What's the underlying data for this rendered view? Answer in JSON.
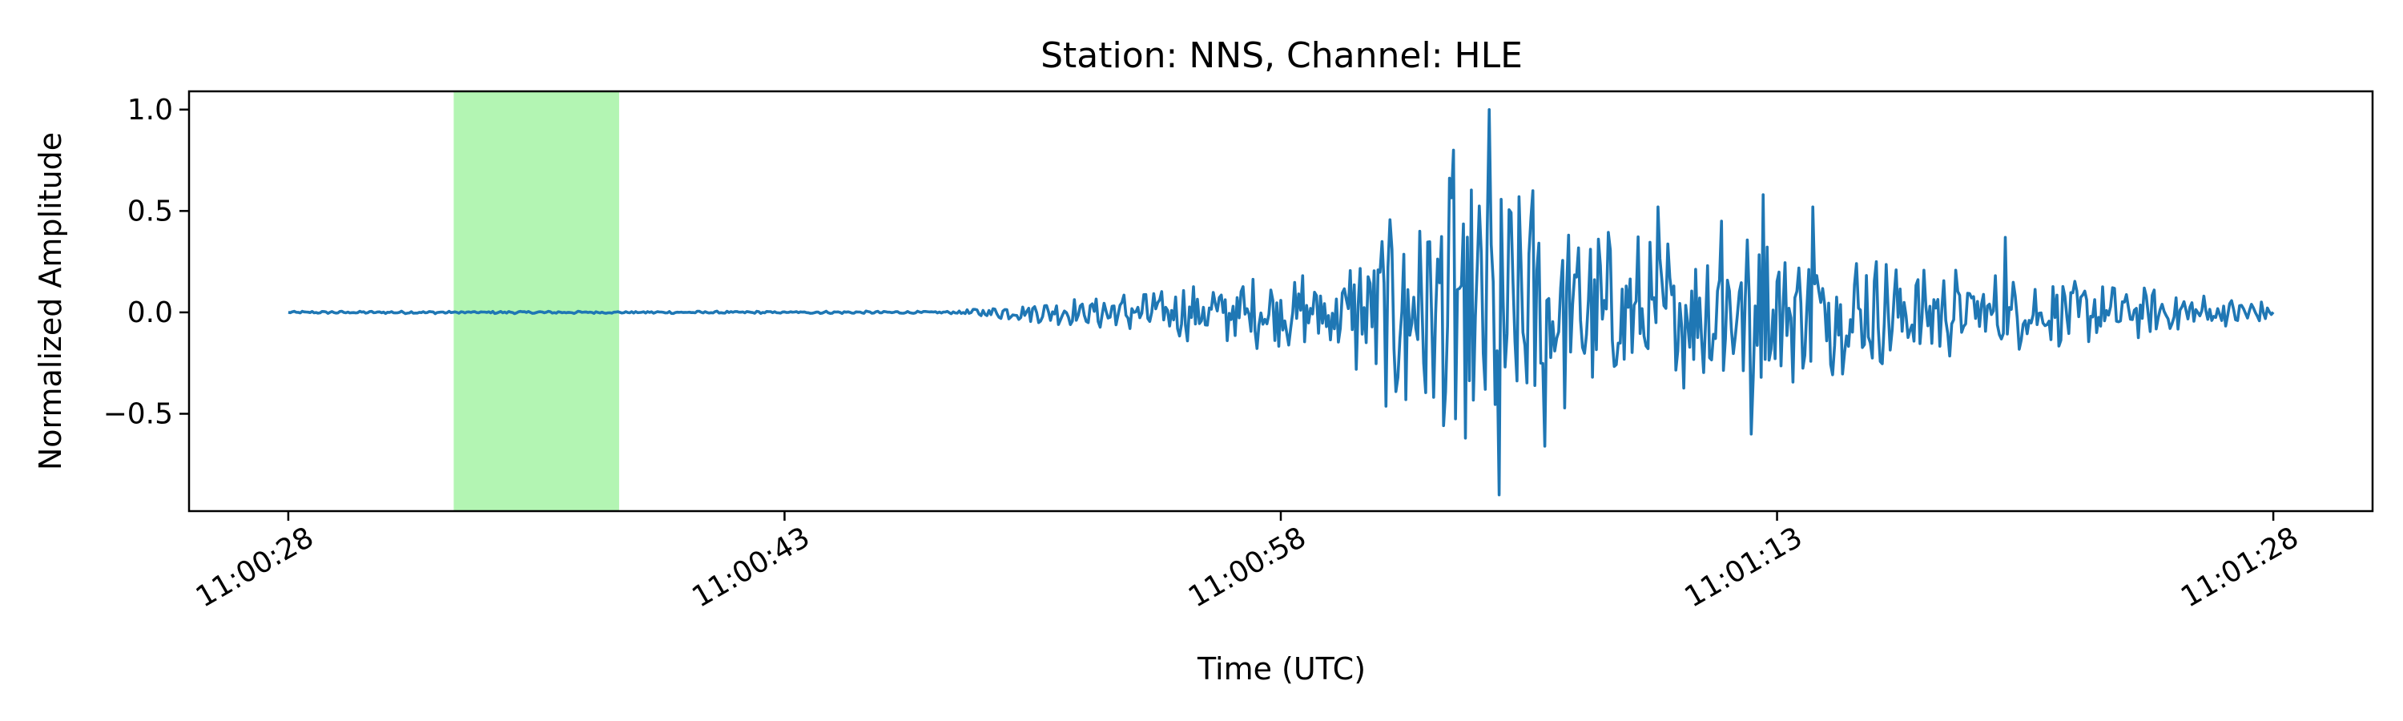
{
  "chart_data": {
    "type": "line",
    "title": "Station: NNS, Channel: HLE",
    "xlabel": "Time (UTC)",
    "ylabel": "Normalized Amplitude",
    "x_unit": "time",
    "xlim": [
      "11:00:25",
      "11:01:31"
    ],
    "ylim": [
      -0.98,
      1.09
    ],
    "x_ticks": [
      "11:00:28",
      "11:00:43",
      "11:00:58",
      "11:01:13",
      "11:01:28"
    ],
    "y_ticks": [
      {
        "value": 1.0,
        "label": "1.0"
      },
      {
        "value": 0.5,
        "label": "0.5"
      },
      {
        "value": 0.0,
        "label": "0.0"
      },
      {
        "value": -0.5,
        "label": "−0.5"
      }
    ],
    "highlight_span": {
      "start": "11:00:33",
      "end": "11:00:38",
      "color": "#b3f5b3"
    },
    "series": [
      {
        "color": "#1f77b4",
        "x_start": "11:00:28",
        "x_end": "11:01:28",
        "envelope": [
          [
            "11:00:28",
            0.005
          ],
          [
            "11:00:48",
            0.005
          ],
          [
            "11:00:49",
            0.02
          ],
          [
            "11:00:52",
            0.06
          ],
          [
            "11:00:55",
            0.11
          ],
          [
            "11:00:58",
            0.15
          ],
          [
            "11:01:00",
            0.22
          ],
          [
            "11:01:01",
            0.35
          ],
          [
            "11:01:03",
            0.55
          ],
          [
            "11:01:05",
            0.48
          ],
          [
            "11:01:08",
            0.32
          ],
          [
            "11:01:13",
            0.3
          ],
          [
            "11:01:16",
            0.22
          ],
          [
            "11:01:20",
            0.15
          ],
          [
            "11:01:25",
            0.09
          ],
          [
            "11:01:28",
            0.04
          ]
        ],
        "peaks": [
          [
            "11:01:03.2",
            0.8
          ],
          [
            "11:01:03.6",
            -0.62
          ],
          [
            "11:01:04.3",
            1.0
          ],
          [
            "11:01:04.6",
            -0.9
          ],
          [
            "11:01:05.6",
            0.6
          ],
          [
            "11:01:06.0",
            -0.66
          ],
          [
            "11:01:01.8",
            -0.43
          ],
          [
            "11:01:02.2",
            0.4
          ],
          [
            "11:01:09.4",
            0.52
          ],
          [
            "11:01:11.3",
            0.45
          ],
          [
            "11:01:12.2",
            -0.6
          ],
          [
            "11:01:12.6",
            0.58
          ],
          [
            "11:01:14.1",
            0.52
          ],
          [
            "11:01:19.9",
            0.37
          ]
        ]
      }
    ]
  }
}
